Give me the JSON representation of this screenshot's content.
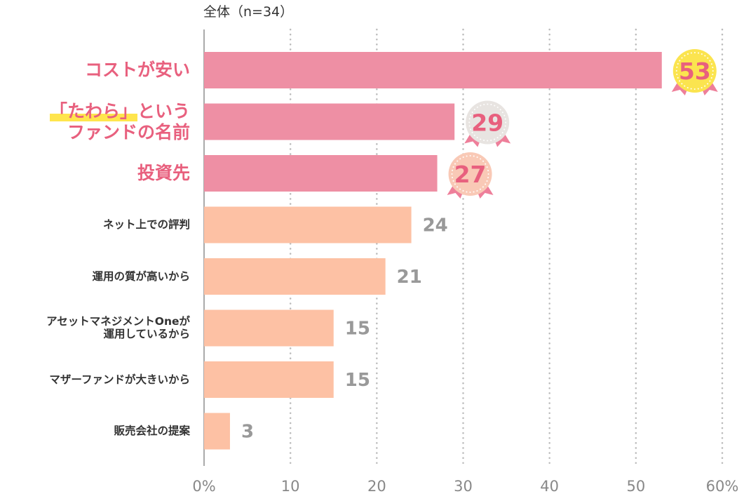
{
  "chart_data": {
    "type": "bar",
    "orientation": "horizontal",
    "subtitle": "全体（n=34）",
    "categories": [
      "コストが安い",
      "「たわら」という\nファンドの名前",
      "投資先",
      "ネット上での評判",
      "運用の質が高いから",
      "アセットマネジメントOneが\n運用しているから",
      "マザーファンドが大きいから",
      "販売会社の提案"
    ],
    "values": [
      53,
      29,
      27,
      24,
      21,
      15,
      15,
      3
    ],
    "value_labels": [
      "53",
      "29",
      "27",
      "24",
      "21",
      "15",
      "15",
      "3"
    ],
    "xlim": [
      0,
      60
    ],
    "xticks": [
      "0%",
      "10",
      "20",
      "30",
      "40",
      "50",
      "60%"
    ],
    "grid": "vertical dotted",
    "top_ranked_count": 3,
    "colors": {
      "top_bar": "#ee8fa4",
      "other_bar": "#fdc1a4",
      "top_label": "#e8607e",
      "value_text": "#999999",
      "medal_gold": "#fbe44f",
      "medal_silver": "#e8e4e1",
      "medal_bronze": "#f9c9b6",
      "ribbon": "#ee7f9a",
      "axis": "#aaaaaa",
      "grid": "#bbbbbb"
    }
  }
}
